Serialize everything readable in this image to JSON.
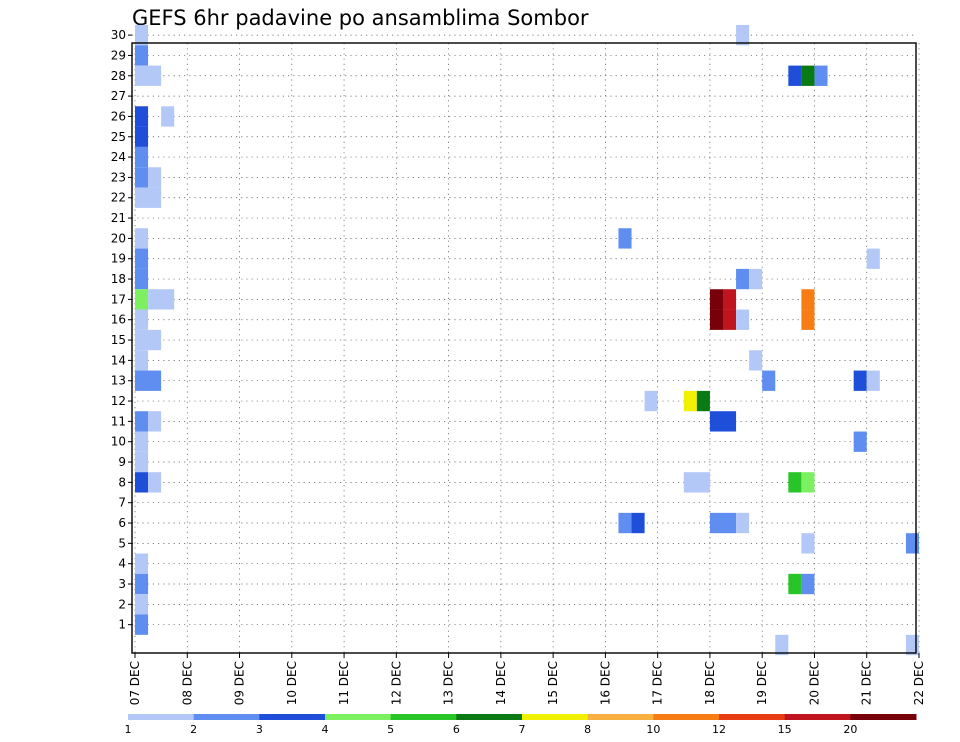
{
  "chart_data": {
    "type": "heatmap",
    "title": "GEFS 6hr padavine po ansamblima Sombor",
    "y_ticks": [
      "1",
      "2",
      "3",
      "4",
      "5",
      "6",
      "7",
      "8",
      "9",
      "10",
      "11",
      "12",
      "13",
      "14",
      "15",
      "16",
      "17",
      "18",
      "19",
      "20",
      "21",
      "22",
      "23",
      "24",
      "25",
      "26",
      "27",
      "28",
      "29",
      "30"
    ],
    "x_ticks": [
      "07 DEC",
      "08 DEC",
      "09 DEC",
      "10 DEC",
      "11 DEC",
      "12 DEC",
      "13 DEC",
      "14 DEC",
      "15 DEC",
      "16 DEC",
      "17 DEC",
      "18 DEC",
      "19 DEC",
      "20 DEC",
      "21 DEC",
      "22 DEC"
    ],
    "grid": true,
    "colorbar": {
      "labels": [
        "1",
        "2",
        "3",
        "4",
        "5",
        "6",
        "7",
        "8",
        "10",
        "12",
        "15",
        "20"
      ],
      "colors": [
        "#b4c8f8",
        "#5f8ef0",
        "#1f4fd8",
        "#7cf060",
        "#28c428",
        "#0a7a14",
        "#f0f000",
        "#f8b040",
        "#f87c14",
        "#e83c14",
        "#c0141e",
        "#78000a"
      ]
    },
    "cells": [
      {
        "m": 30,
        "x": 0.0,
        "w": 0.25,
        "c": 1
      },
      {
        "m": 29,
        "x": 0.0,
        "w": 0.25,
        "c": 2
      },
      {
        "m": 28,
        "x": 0.0,
        "w": 0.5,
        "c": 1
      },
      {
        "m": 26,
        "x": 0.0,
        "w": 0.25,
        "c": 3
      },
      {
        "m": 26,
        "x": 0.5,
        "w": 0.25,
        "c": 1
      },
      {
        "m": 25,
        "x": 0.0,
        "w": 0.25,
        "c": 3
      },
      {
        "m": 24,
        "x": 0.0,
        "w": 0.25,
        "c": 2
      },
      {
        "m": 23,
        "x": 0.0,
        "w": 0.25,
        "c": 2
      },
      {
        "m": 23,
        "x": 0.25,
        "w": 0.25,
        "c": 1
      },
      {
        "m": 22,
        "x": 0.0,
        "w": 0.5,
        "c": 1
      },
      {
        "m": 20,
        "x": 0.0,
        "w": 0.25,
        "c": 1
      },
      {
        "m": 19,
        "x": 0.0,
        "w": 0.25,
        "c": 2
      },
      {
        "m": 18,
        "x": 0.0,
        "w": 0.25,
        "c": 2
      },
      {
        "m": 17,
        "x": 0.0,
        "w": 0.25,
        "c": 4
      },
      {
        "m": 17,
        "x": 0.25,
        "w": 0.5,
        "c": 1
      },
      {
        "m": 16,
        "x": 0.0,
        "w": 0.25,
        "c": 1
      },
      {
        "m": 15,
        "x": 0.0,
        "w": 0.5,
        "c": 1
      },
      {
        "m": 14,
        "x": 0.0,
        "w": 0.25,
        "c": 1
      },
      {
        "m": 13,
        "x": 0.0,
        "w": 0.5,
        "c": 2
      },
      {
        "m": 11,
        "x": 0.0,
        "w": 0.25,
        "c": 2
      },
      {
        "m": 11,
        "x": 0.25,
        "w": 0.25,
        "c": 1
      },
      {
        "m": 10,
        "x": 0.0,
        "w": 0.25,
        "c": 1
      },
      {
        "m": 9,
        "x": 0.0,
        "w": 0.25,
        "c": 1
      },
      {
        "m": 8,
        "x": 0.0,
        "w": 0.25,
        "c": 3
      },
      {
        "m": 8,
        "x": 0.25,
        "w": 0.25,
        "c": 1
      },
      {
        "m": 4,
        "x": 0.0,
        "w": 0.25,
        "c": 1
      },
      {
        "m": 3,
        "x": 0.0,
        "w": 0.25,
        "c": 2
      },
      {
        "m": 2,
        "x": 0.0,
        "w": 0.25,
        "c": 1
      },
      {
        "m": 1,
        "x": 0.0,
        "w": 0.25,
        "c": 2
      },
      {
        "m": 20,
        "x": 9.25,
        "w": 0.25,
        "c": 2
      },
      {
        "m": 12,
        "x": 9.75,
        "w": 0.25,
        "c": 1
      },
      {
        "m": 6,
        "x": 9.25,
        "w": 0.25,
        "c": 2
      },
      {
        "m": 6,
        "x": 9.5,
        "w": 0.25,
        "c": 3
      },
      {
        "m": 12,
        "x": 10.5,
        "w": 0.25,
        "c": 7
      },
      {
        "m": 12,
        "x": 10.75,
        "w": 0.25,
        "c": 6
      },
      {
        "m": 8,
        "x": 10.5,
        "w": 0.5,
        "c": 1
      },
      {
        "m": 16,
        "x": 11.0,
        "w": 0.25,
        "c": 12
      },
      {
        "m": 16,
        "x": 11.25,
        "w": 0.25,
        "c": 11
      },
      {
        "m": 16,
        "x": 11.5,
        "w": 0.25,
        "c": 1
      },
      {
        "m": 17,
        "x": 11.0,
        "w": 0.25,
        "c": 12
      },
      {
        "m": 17,
        "x": 11.25,
        "w": 0.25,
        "c": 11
      },
      {
        "m": 11,
        "x": 11.0,
        "w": 0.5,
        "c": 3
      },
      {
        "m": 6,
        "x": 11.0,
        "w": 0.5,
        "c": 2
      },
      {
        "m": 6,
        "x": 11.5,
        "w": 0.25,
        "c": 1
      },
      {
        "m": 30,
        "x": 11.5,
        "w": 0.25,
        "c": 1
      },
      {
        "m": 18,
        "x": 11.5,
        "w": 0.25,
        "c": 2
      },
      {
        "m": 18,
        "x": 11.75,
        "w": 0.25,
        "c": 1
      },
      {
        "m": 14,
        "x": 11.75,
        "w": 0.25,
        "c": 1
      },
      {
        "m": 13,
        "x": 12.0,
        "w": 0.25,
        "c": 2
      },
      {
        "m": 28,
        "x": 12.5,
        "w": 0.25,
        "c": 3
      },
      {
        "m": 28,
        "x": 12.75,
        "w": 0.25,
        "c": 6
      },
      {
        "m": 28,
        "x": 13.0,
        "w": 0.25,
        "c": 2
      },
      {
        "m": 17,
        "x": 12.75,
        "w": 0.25,
        "c": 9
      },
      {
        "m": 16,
        "x": 12.75,
        "w": 0.25,
        "c": 9
      },
      {
        "m": 8,
        "x": 12.5,
        "w": 0.25,
        "c": 5
      },
      {
        "m": 8,
        "x": 12.75,
        "w": 0.25,
        "c": 4
      },
      {
        "m": 5,
        "x": 12.75,
        "w": 0.25,
        "c": 1
      },
      {
        "m": 3,
        "x": 12.5,
        "w": 0.25,
        "c": 5
      },
      {
        "m": 3,
        "x": 12.75,
        "w": 0.25,
        "c": 2
      },
      {
        "m": 0,
        "x": 12.25,
        "w": 0.25,
        "c": 1
      },
      {
        "m": 19,
        "x": 14.0,
        "w": 0.25,
        "c": 1
      },
      {
        "m": 13,
        "x": 13.75,
        "w": 0.25,
        "c": 3
      },
      {
        "m": 13,
        "x": 14.0,
        "w": 0.25,
        "c": 1
      },
      {
        "m": 10,
        "x": 13.75,
        "w": 0.25,
        "c": 2
      },
      {
        "m": 5,
        "x": 14.75,
        "w": 0.25,
        "c": 2
      },
      {
        "m": 0,
        "x": 14.75,
        "w": 0.25,
        "c": 1
      }
    ]
  }
}
